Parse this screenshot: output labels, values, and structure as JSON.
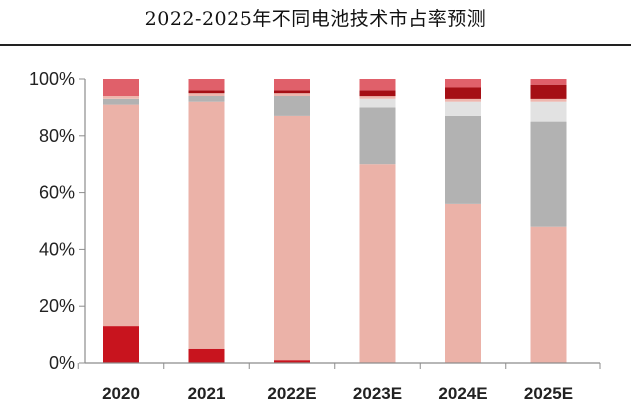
{
  "chart_data": {
    "type": "bar",
    "stacked": true,
    "title": "2022-2025年不同电池技术市占率预测",
    "xlabel": "",
    "ylabel": "",
    "ylim": [
      0,
      100
    ],
    "yticks": [
      "0%",
      "20%",
      "40%",
      "60%",
      "80%",
      "100%"
    ],
    "ytick_values": [
      0,
      20,
      40,
      60,
      80,
      100
    ],
    "categories": [
      "2020",
      "2021",
      "2022E",
      "2023E",
      "2024E",
      "2025E"
    ],
    "series": [
      {
        "name": "series-1",
        "color": "#c8141e",
        "values": [
          13,
          5,
          1,
          0,
          0,
          0
        ]
      },
      {
        "name": "series-2",
        "color": "#ebb2a8",
        "values": [
          78,
          87,
          86,
          70,
          56,
          48
        ]
      },
      {
        "name": "series-3",
        "color": "#b2b2b2",
        "values": [
          2,
          2,
          7,
          20,
          31,
          37
        ]
      },
      {
        "name": "series-4",
        "color": "#e2e2e2",
        "values": [
          0,
          0,
          0,
          3,
          5,
          7
        ]
      },
      {
        "name": "series-5",
        "color": "#eeb6ae",
        "values": [
          1,
          1,
          1,
          1,
          1,
          1
        ]
      },
      {
        "name": "series-6",
        "color": "#a50f15",
        "values": [
          0,
          1,
          1,
          2,
          4,
          5
        ]
      },
      {
        "name": "series-7",
        "color": "#e0606a",
        "values": [
          6,
          4,
          4,
          4,
          3,
          2
        ]
      }
    ],
    "grid": false
  }
}
